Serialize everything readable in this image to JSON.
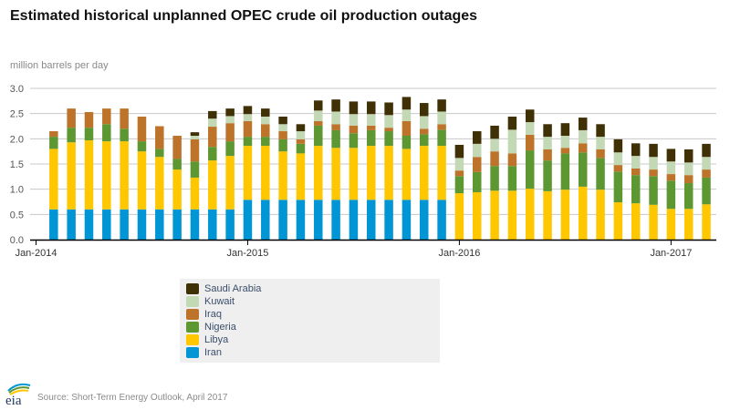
{
  "chart_data": {
    "type": "bar",
    "stacked": true,
    "title": "Estimated historical unplanned OPEC crude oil production outages",
    "ylabel": "million barrels per day",
    "xlabel": "",
    "ylim": [
      0,
      3.0
    ],
    "yticks": [
      "0.0",
      "0.5",
      "1.0",
      "1.5",
      "2.0",
      "2.5",
      "3.0"
    ],
    "ytick_values": [
      0,
      0.5,
      1.0,
      1.5,
      2.0,
      2.5,
      3.0
    ],
    "xticks": [
      "Jan-2014",
      "Jan-2015",
      "Jan-2016",
      "Jan-2017"
    ],
    "xtick_month_index": [
      0,
      12,
      24,
      36
    ],
    "grid": true,
    "legend_position": "bottom-center",
    "categories": [
      "Feb-2014",
      "Mar-2014",
      "Apr-2014",
      "May-2014",
      "Jun-2014",
      "Jul-2014",
      "Aug-2014",
      "Sep-2014",
      "Oct-2014",
      "Nov-2014",
      "Dec-2014",
      "Jan-2015",
      "Feb-2015",
      "Mar-2015",
      "Apr-2015",
      "May-2015",
      "Jun-2015",
      "Jul-2015",
      "Aug-2015",
      "Sep-2015",
      "Oct-2015",
      "Nov-2015",
      "Dec-2015",
      "Jan-2016",
      "Feb-2016",
      "Mar-2016",
      "Apr-2016",
      "May-2016",
      "Jun-2016",
      "Jul-2016",
      "Aug-2016",
      "Sep-2016",
      "Oct-2016",
      "Nov-2016",
      "Dec-2016",
      "Jan-2017",
      "Feb-2017",
      "Mar-2017"
    ],
    "category_month_index_start": 1,
    "series": [
      {
        "name": "Iran",
        "color": "#0096d6",
        "values": [
          0.6,
          0.6,
          0.6,
          0.6,
          0.6,
          0.6,
          0.6,
          0.6,
          0.6,
          0.6,
          0.6,
          0.79,
          0.79,
          0.79,
          0.79,
          0.79,
          0.79,
          0.79,
          0.79,
          0.79,
          0.79,
          0.79,
          0.79,
          0,
          0,
          0,
          0,
          0,
          0,
          0,
          0,
          0,
          0,
          0,
          0,
          0,
          0,
          0
        ]
      },
      {
        "name": "Libya",
        "color": "#ffc700",
        "values": [
          1.2,
          1.33,
          1.37,
          1.35,
          1.35,
          1.15,
          1.04,
          0.79,
          0.63,
          0.97,
          1.06,
          1.07,
          1.07,
          0.96,
          0.92,
          1.07,
          1.03,
          1.03,
          1.07,
          1.07,
          1.01,
          1.07,
          1.07,
          0.92,
          0.94,
          0.97,
          0.97,
          1.01,
          0.96,
          0.99,
          1.05,
          0.99,
          0.74,
          0.72,
          0.69,
          0.61,
          0.61,
          0.7
        ]
      },
      {
        "name": "Nigeria",
        "color": "#5d9732",
        "values": [
          0.24,
          0.29,
          0.25,
          0.34,
          0.25,
          0.2,
          0.16,
          0.21,
          0.32,
          0.27,
          0.29,
          0.18,
          0.18,
          0.24,
          0.19,
          0.4,
          0.35,
          0.29,
          0.31,
          0.29,
          0.26,
          0.23,
          0.32,
          0.34,
          0.4,
          0.49,
          0.49,
          0.76,
          0.61,
          0.72,
          0.68,
          0.63,
          0.61,
          0.56,
          0.57,
          0.56,
          0.51,
          0.53
        ]
      },
      {
        "name": "Iraq",
        "color": "#bd732a",
        "values": [
          0.11,
          0.38,
          0.31,
          0.31,
          0.4,
          0.49,
          0.45,
          0.46,
          0.44,
          0.4,
          0.36,
          0.31,
          0.25,
          0.16,
          0.09,
          0.09,
          0.12,
          0.15,
          0.09,
          0.07,
          0.29,
          0.11,
          0.11,
          0.11,
          0.3,
          0.29,
          0.25,
          0.31,
          0.22,
          0.11,
          0.18,
          0.17,
          0.13,
          0.13,
          0.13,
          0.13,
          0.16,
          0.16
        ]
      },
      {
        "name": "Kuwait",
        "color": "#c3d8b4",
        "values": [
          0,
          0,
          0,
          0,
          0,
          0,
          0,
          0,
          0.07,
          0.16,
          0.14,
          0.14,
          0.15,
          0.14,
          0.16,
          0.21,
          0.25,
          0.23,
          0.23,
          0.25,
          0.23,
          0.25,
          0.25,
          0.25,
          0.26,
          0.25,
          0.47,
          0.25,
          0.25,
          0.24,
          0.26,
          0.25,
          0.25,
          0.25,
          0.25,
          0.25,
          0.25,
          0.25
        ]
      },
      {
        "name": "Saudi Arabia",
        "color": "#3f3006",
        "values": [
          0,
          0,
          0,
          0,
          0,
          0,
          0,
          0,
          0.07,
          0.15,
          0.15,
          0.16,
          0.16,
          0.15,
          0.14,
          0.2,
          0.24,
          0.25,
          0.25,
          0.25,
          0.25,
          0.26,
          0.24,
          0.26,
          0.25,
          0.26,
          0.26,
          0.25,
          0.25,
          0.25,
          0.25,
          0.25,
          0.26,
          0.25,
          0.26,
          0.25,
          0.26,
          0.26
        ]
      }
    ],
    "legend_order": [
      "Saudi Arabia",
      "Kuwait",
      "Iraq",
      "Nigeria",
      "Libya",
      "Iran"
    ]
  },
  "header": {
    "title": "Estimated historical unplanned OPEC crude oil production outages",
    "units": "million barrels per day"
  },
  "legend": {
    "items": [
      {
        "label": "Saudi Arabia",
        "color": "#3f3006"
      },
      {
        "label": "Kuwait",
        "color": "#c3d8b4"
      },
      {
        "label": "Iraq",
        "color": "#bd732a"
      },
      {
        "label": "Nigeria",
        "color": "#5d9732"
      },
      {
        "label": "Libya",
        "color": "#ffc700"
      },
      {
        "label": "Iran",
        "color": "#0096d6"
      }
    ]
  },
  "footer": {
    "logo_text": "eia",
    "source": "Source: Short-Term Energy Outlook, April 2017"
  }
}
